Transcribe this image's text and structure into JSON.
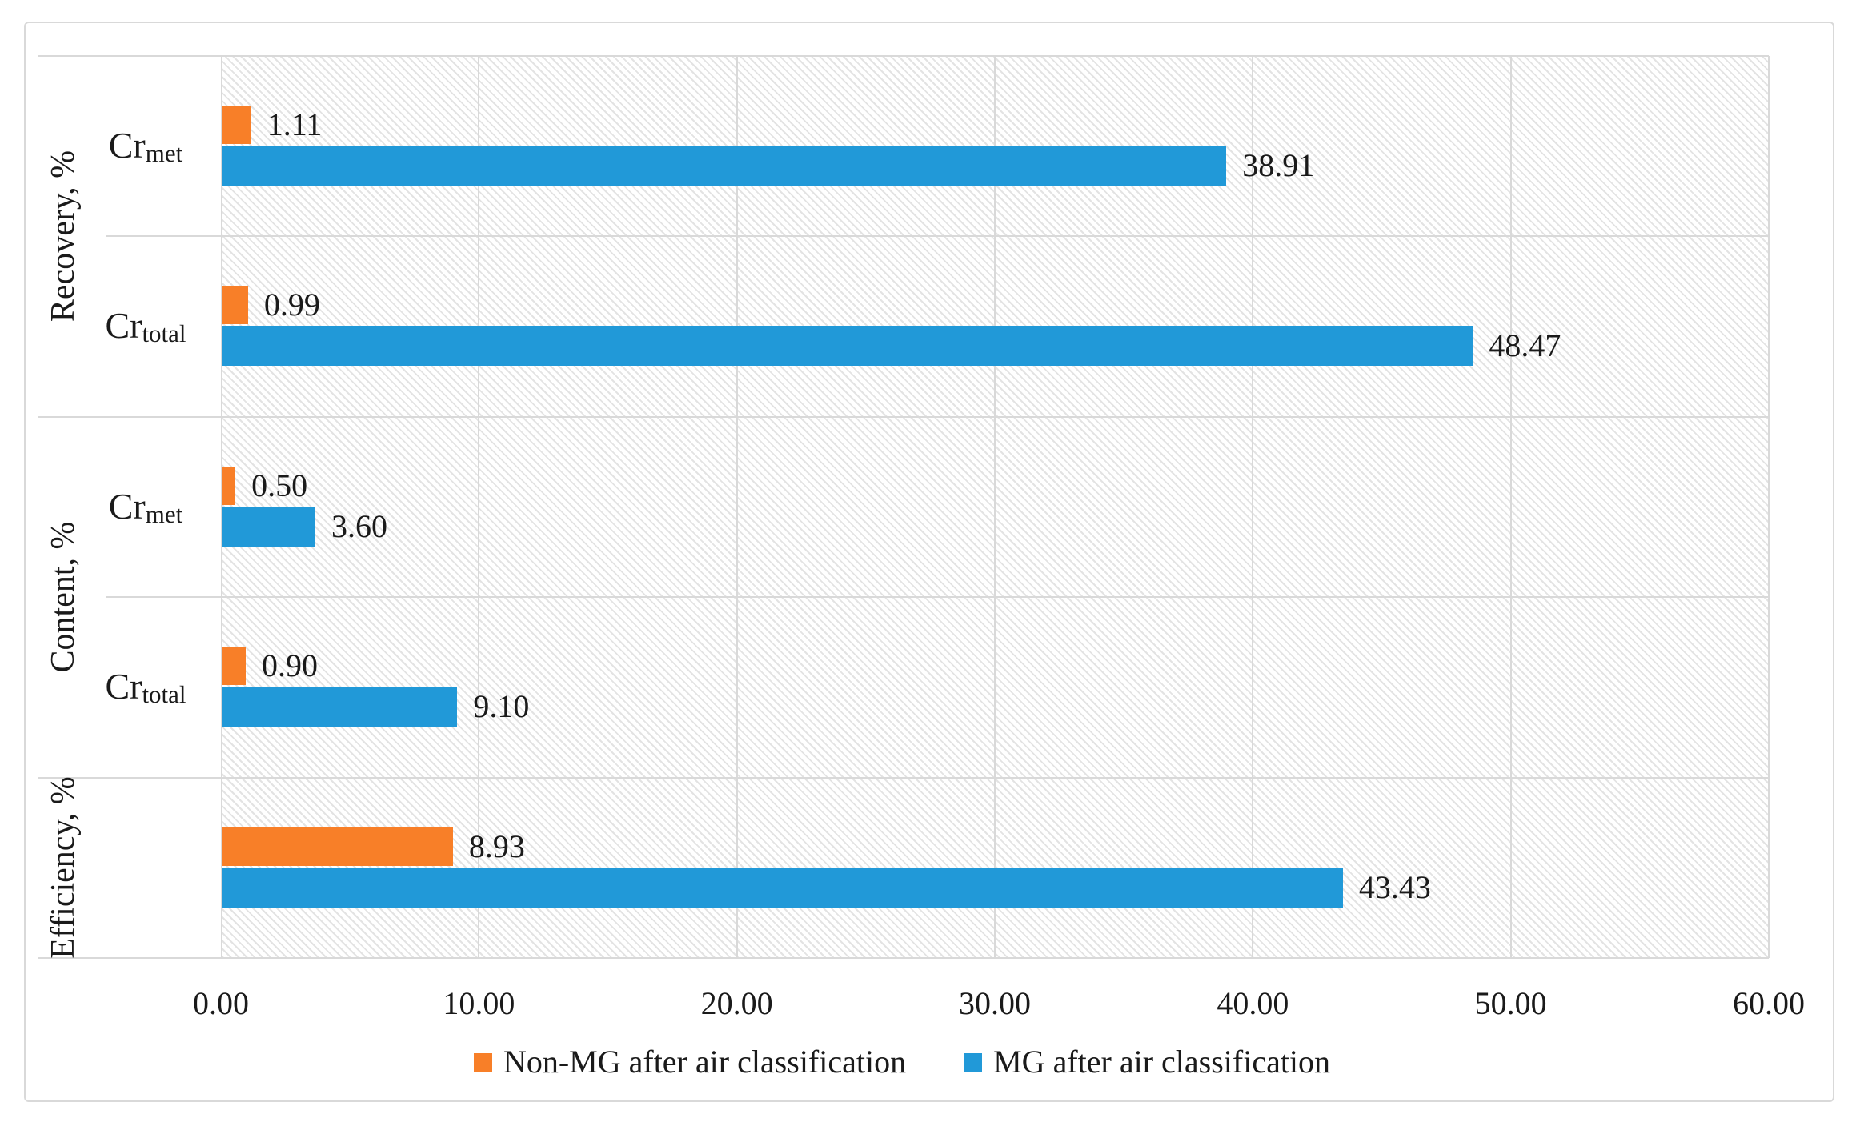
{
  "chart_data": {
    "type": "bar",
    "orientation": "horizontal",
    "title": "",
    "xlabel": "",
    "ylabel": "",
    "x_axis": {
      "min": 0,
      "max": 60,
      "step": 10,
      "tick_labels": [
        "0.00",
        "10.00",
        "20.00",
        "30.00",
        "40.00",
        "50.00",
        "60.00"
      ],
      "grid": true
    },
    "series": [
      {
        "name": "Non-MG after air classification",
        "color": "#f87f28"
      },
      {
        "name": "MG after air classification",
        "color": "#2199d8"
      }
    ],
    "groups": [
      {
        "label": "Recovery, %",
        "row_start": 0,
        "row_span": 2
      },
      {
        "label": "Content, %",
        "row_start": 2,
        "row_span": 2
      },
      {
        "label": "Efficiency, %",
        "row_start": 4,
        "row_span": 1
      }
    ],
    "rows": [
      {
        "group": "Recovery, %",
        "category_base": "Cr",
        "category_sub": "met",
        "non_mg": 1.11,
        "non_mg_label": "1.11",
        "mg": 38.91,
        "mg_label": "38.91"
      },
      {
        "group": "Recovery, %",
        "category_base": "Cr",
        "category_sub": "total",
        "non_mg": 0.99,
        "non_mg_label": "0.99",
        "mg": 48.47,
        "mg_label": "48.47"
      },
      {
        "group": "Content, %",
        "category_base": "Cr",
        "category_sub": "met",
        "non_mg": 0.5,
        "non_mg_label": "0.50",
        "mg": 3.6,
        "mg_label": "3.60"
      },
      {
        "group": "Content, %",
        "category_base": "Cr",
        "category_sub": "total",
        "non_mg": 0.9,
        "non_mg_label": "0.90",
        "mg": 9.1,
        "mg_label": "9.10"
      },
      {
        "group": "Efficiency, %",
        "category_base": "",
        "category_sub": "",
        "non_mg": 8.93,
        "non_mg_label": "8.93",
        "mg": 43.43,
        "mg_label": "43.43"
      }
    ],
    "legend": {
      "position": "bottom-center",
      "entries": [
        "Non-MG after air classification",
        "MG after air classification"
      ]
    },
    "colors": {
      "grid": "#d9d9d9",
      "hatch": "#e3e3e3",
      "text": "#1a1a1a",
      "background": "#ffffff"
    }
  }
}
